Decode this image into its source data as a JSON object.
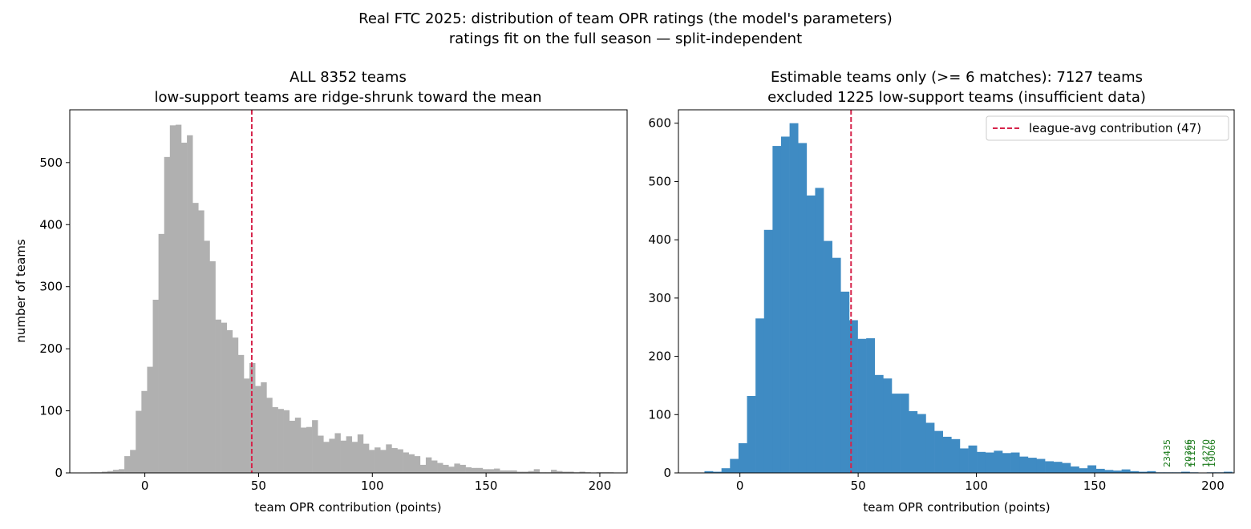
{
  "suptitle": {
    "line1": "Real FTC 2025: distribution of team OPR ratings (the model's parameters)",
    "line2": "ratings fit on the full season — split-independent"
  },
  "colors": {
    "left_bars": "#b0b0b0",
    "right_bars": "#3f8bc3",
    "avg_line": "#d6234a",
    "annotation": "#1a7a1a"
  },
  "chart_data": [
    {
      "type": "bar",
      "title": "ALL 8352 teams",
      "subtitle": "low-support teams are ridge-shrunk toward the mean",
      "xlabel": "team OPR contribution (points)",
      "ylabel": "number of teams",
      "xlim": [
        -33,
        212
      ],
      "ylim": [
        0,
        585
      ],
      "xticks": [
        0,
        50,
        100,
        150,
        200
      ],
      "yticks": [
        0,
        100,
        200,
        300,
        400,
        500
      ],
      "bin_start": -24,
      "bin_width": 2.5,
      "values": [
        1,
        1,
        2,
        3,
        5,
        6,
        27,
        37,
        100,
        132,
        171,
        279,
        385,
        509,
        560,
        561,
        532,
        544,
        435,
        423,
        374,
        341,
        247,
        242,
        230,
        218,
        190,
        152,
        177,
        140,
        146,
        121,
        106,
        103,
        101,
        84,
        89,
        73,
        74,
        85,
        60,
        50,
        55,
        64,
        52,
        59,
        50,
        62,
        47,
        37,
        41,
        37,
        46,
        40,
        38,
        33,
        30,
        27,
        13,
        25,
        20,
        16,
        13,
        10,
        15,
        13,
        9,
        8,
        8,
        6,
        6,
        7,
        4,
        4,
        4,
        2,
        2,
        3,
        6,
        1,
        1,
        5,
        3,
        2,
        2,
        1,
        2,
        1,
        0,
        1,
        1,
        1
      ],
      "avg_line_x": 47,
      "grid": false
    },
    {
      "type": "bar",
      "title": "Estimable teams only (>= 6 matches): 7127 teams",
      "subtitle": "excluded 1225 low-support teams (insufficient data)",
      "xlabel": "team OPR contribution (points)",
      "ylabel": "",
      "xlim": [
        -26,
        209
      ],
      "ylim": [
        0,
        623
      ],
      "xticks": [
        0,
        50,
        100,
        150,
        200
      ],
      "yticks": [
        0,
        100,
        200,
        300,
        400,
        500,
        600
      ],
      "bin_start": -15,
      "bin_width": 3.6,
      "values": [
        3,
        2,
        8,
        24,
        51,
        132,
        265,
        417,
        561,
        577,
        600,
        566,
        476,
        489,
        398,
        369,
        311,
        262,
        230,
        231,
        168,
        162,
        136,
        136,
        106,
        101,
        86,
        72,
        62,
        58,
        42,
        47,
        36,
        35,
        38,
        34,
        35,
        28,
        26,
        24,
        20,
        19,
        17,
        11,
        8,
        13,
        7,
        5,
        4,
        6,
        3,
        2,
        3,
        1,
        1,
        1,
        2,
        1,
        0,
        1,
        1,
        2
      ],
      "avg_line_x": 47,
      "legend": {
        "label": "league-avg contribution (47)",
        "position": "top-right"
      },
      "annotations": [
        {
          "x": 180.5,
          "text": "23435"
        },
        {
          "x": 189.5,
          "text": "20366"
        },
        {
          "x": 191.0,
          "text": "11125"
        },
        {
          "x": 197.0,
          "text": "14270"
        },
        {
          "x": 199.5,
          "text": "19066"
        }
      ],
      "grid": false
    }
  ]
}
